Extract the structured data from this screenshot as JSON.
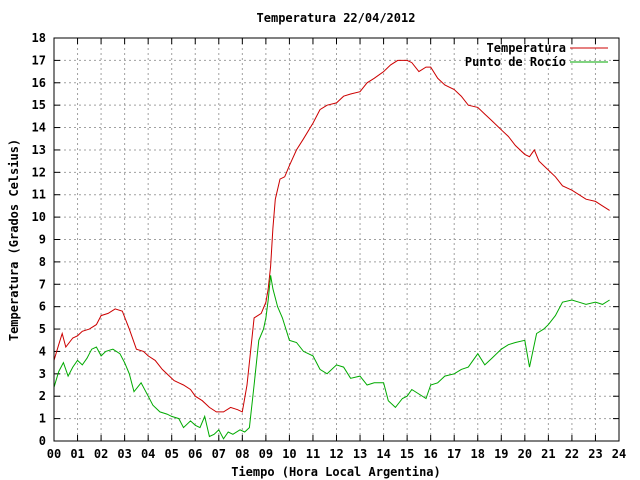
{
  "chart_data": {
    "type": "line",
    "title": "Temperatura 22/04/2012",
    "xlabel": "Tiempo (Hora Local Argentina)",
    "ylabel": "Temperatura (Grados Celsius)",
    "xlim": [
      0,
      24
    ],
    "ylim": [
      0,
      18
    ],
    "x_ticks": [
      "00",
      "01",
      "02",
      "03",
      "04",
      "05",
      "06",
      "07",
      "08",
      "09",
      "10",
      "11",
      "12",
      "13",
      "14",
      "15",
      "16",
      "17",
      "18",
      "19",
      "20",
      "21",
      "22",
      "23",
      "24"
    ],
    "y_ticks": [
      0,
      1,
      2,
      3,
      4,
      5,
      6,
      7,
      8,
      9,
      10,
      11,
      12,
      13,
      14,
      15,
      16,
      17,
      18
    ],
    "grid": true,
    "legend_position": "top-right",
    "colors": {
      "Temperatura": "#cc0000",
      "Punto de Rocío": "#00aa00"
    },
    "series": [
      {
        "name": "Temperatura",
        "x": [
          0,
          0.2,
          0.35,
          0.5,
          0.8,
          1.0,
          1.2,
          1.5,
          1.8,
          2.0,
          2.3,
          2.6,
          2.9,
          3.2,
          3.5,
          3.8,
          4.0,
          4.3,
          4.6,
          4.9,
          5.1,
          5.3,
          5.5,
          5.8,
          6.0,
          6.3,
          6.6,
          6.9,
          7.2,
          7.5,
          7.8,
          8.0,
          8.2,
          8.5,
          8.8,
          9.0,
          9.1,
          9.2,
          9.3,
          9.4,
          9.6,
          9.8,
          10.0,
          10.3,
          10.6,
          11.0,
          11.3,
          11.6,
          12.0,
          12.3,
          12.6,
          13.0,
          13.3,
          13.6,
          14.0,
          14.3,
          14.6,
          15.0,
          15.2,
          15.5,
          15.8,
          16.0,
          16.3,
          16.6,
          17.0,
          17.3,
          17.6,
          18.0,
          18.3,
          18.6,
          19.0,
          19.3,
          19.6,
          20.0,
          20.2,
          20.4,
          20.6,
          21.0,
          21.3,
          21.6,
          22.0,
          22.3,
          22.6,
          23.0,
          23.3,
          23.6
        ],
        "values": [
          3.6,
          4.3,
          4.8,
          4.2,
          4.6,
          4.7,
          4.9,
          5.0,
          5.2,
          5.6,
          5.7,
          5.9,
          5.8,
          5.0,
          4.1,
          4.0,
          3.8,
          3.6,
          3.2,
          2.9,
          2.7,
          2.6,
          2.5,
          2.3,
          2.0,
          1.8,
          1.5,
          1.3,
          1.3,
          1.5,
          1.4,
          1.3,
          2.5,
          5.5,
          5.7,
          6.2,
          6.8,
          7.8,
          9.5,
          10.8,
          11.7,
          11.8,
          12.3,
          13.0,
          13.5,
          14.2,
          14.8,
          15.0,
          15.1,
          15.4,
          15.5,
          15.6,
          16.0,
          16.2,
          16.5,
          16.8,
          17.0,
          17.0,
          16.9,
          16.5,
          16.7,
          16.7,
          16.2,
          15.9,
          15.7,
          15.4,
          15.0,
          14.9,
          14.6,
          14.3,
          13.9,
          13.6,
          13.2,
          12.8,
          12.7,
          13.0,
          12.5,
          12.1,
          11.8,
          11.4,
          11.2,
          11.0,
          10.8,
          10.7,
          10.5,
          10.3
        ]
      },
      {
        "name": "Punto de Rocío",
        "x": [
          0,
          0.2,
          0.4,
          0.6,
          0.8,
          1.0,
          1.2,
          1.4,
          1.6,
          1.8,
          2.0,
          2.2,
          2.5,
          2.8,
          3.0,
          3.2,
          3.4,
          3.7,
          4.0,
          4.2,
          4.5,
          4.8,
          5.0,
          5.3,
          5.5,
          5.8,
          6.0,
          6.2,
          6.4,
          6.6,
          6.8,
          7.0,
          7.2,
          7.4,
          7.6,
          7.9,
          8.1,
          8.3,
          8.5,
          8.7,
          8.9,
          9.0,
          9.1,
          9.2,
          9.3,
          9.5,
          9.7,
          10.0,
          10.3,
          10.6,
          11.0,
          11.3,
          11.6,
          12.0,
          12.3,
          12.6,
          13.0,
          13.3,
          13.6,
          14.0,
          14.2,
          14.5,
          14.8,
          15.0,
          15.2,
          15.5,
          15.8,
          16.0,
          16.3,
          16.6,
          17.0,
          17.3,
          17.6,
          18.0,
          18.3,
          18.6,
          19.0,
          19.3,
          19.6,
          20.0,
          20.2,
          20.5,
          20.8,
          21.0,
          21.3,
          21.6,
          22.0,
          22.3,
          22.6,
          23.0,
          23.3,
          23.6
        ],
        "values": [
          2.4,
          3.1,
          3.5,
          2.9,
          3.3,
          3.6,
          3.4,
          3.7,
          4.1,
          4.2,
          3.8,
          4.0,
          4.1,
          3.9,
          3.5,
          3.0,
          2.2,
          2.6,
          2.0,
          1.6,
          1.3,
          1.2,
          1.1,
          1.0,
          0.6,
          0.9,
          0.7,
          0.6,
          1.1,
          0.2,
          0.3,
          0.5,
          0.1,
          0.4,
          0.3,
          0.5,
          0.4,
          0.6,
          2.5,
          4.5,
          5.0,
          5.5,
          6.3,
          7.4,
          6.8,
          6.0,
          5.5,
          4.5,
          4.4,
          4.0,
          3.8,
          3.2,
          3.0,
          3.4,
          3.3,
          2.8,
          2.9,
          2.5,
          2.6,
          2.6,
          1.8,
          1.5,
          1.9,
          2.0,
          2.3,
          2.1,
          1.9,
          2.5,
          2.6,
          2.9,
          3.0,
          3.2,
          3.3,
          3.9,
          3.4,
          3.7,
          4.1,
          4.3,
          4.4,
          4.5,
          3.3,
          4.8,
          5.0,
          5.2,
          5.6,
          6.2,
          6.3,
          6.2,
          6.1,
          6.2,
          6.1,
          6.3
        ]
      }
    ]
  }
}
